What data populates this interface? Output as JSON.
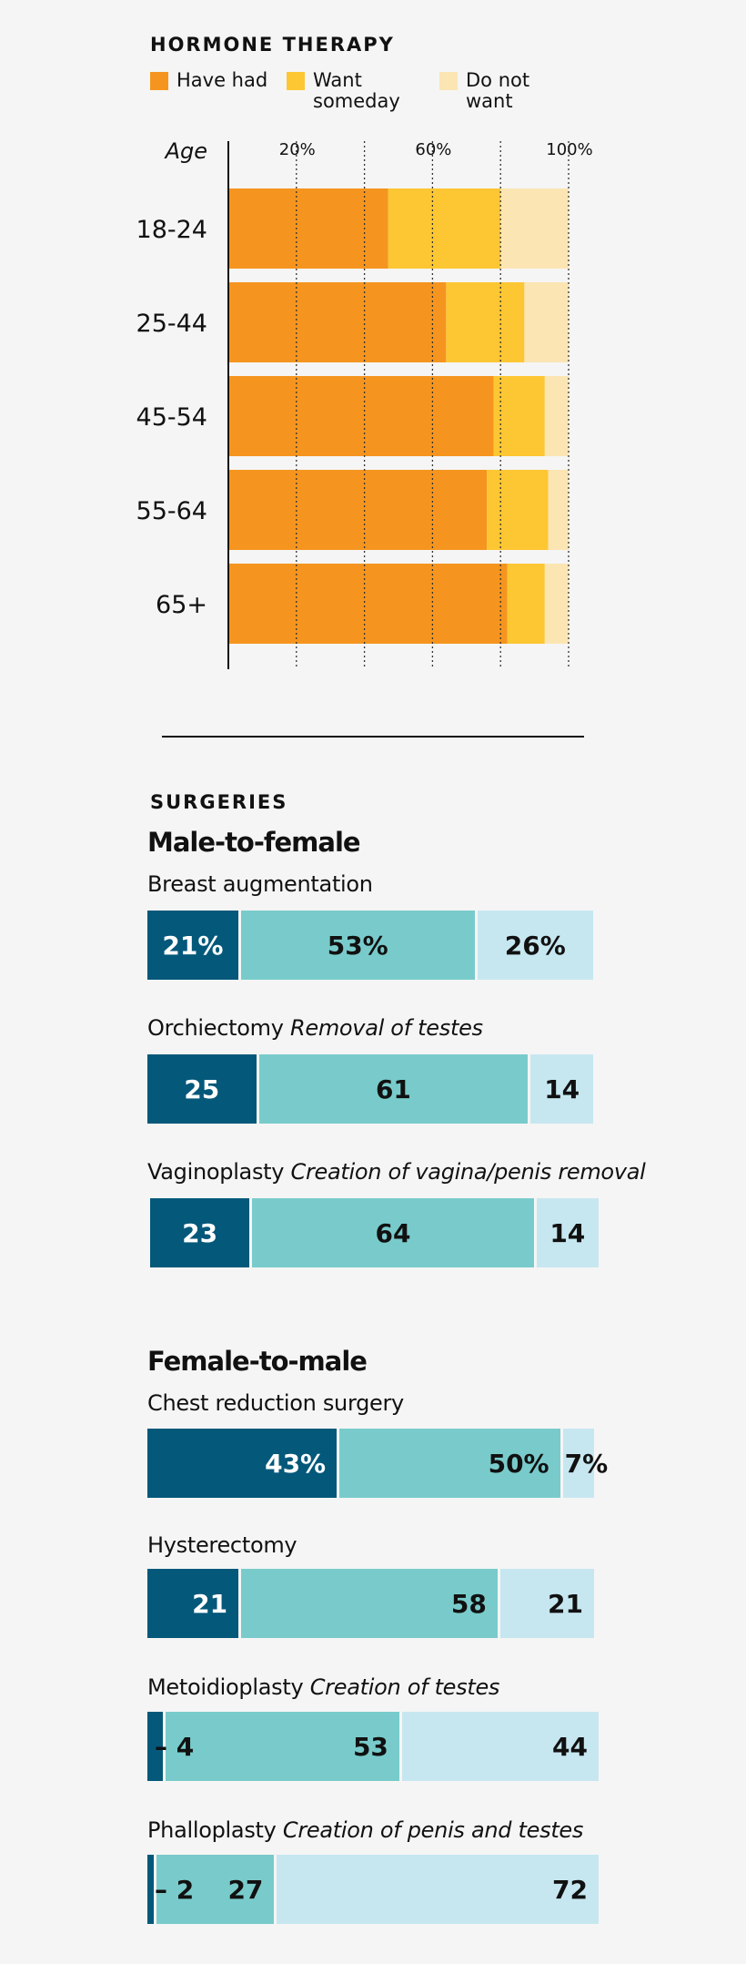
{
  "hormone": {
    "section_title": "HORMONE THERAPY",
    "legend": [
      {
        "label": "Have had",
        "color": "#f5951f"
      },
      {
        "label": "Want\nsomeday",
        "color": "#fdc633"
      },
      {
        "label": "Do not\nwant",
        "color": "#fbe5b3"
      }
    ]
  },
  "chart_data": [
    {
      "type": "bar",
      "orientation": "horizontal",
      "stacked": true,
      "title": "HORMONE THERAPY",
      "ylabel": "Age",
      "categories": [
        "18-24",
        "25-44",
        "45-54",
        "55-64",
        "65+"
      ],
      "series": [
        {
          "name": "Have had",
          "color": "#f5951f",
          "values": [
            47,
            64,
            78,
            76,
            82
          ]
        },
        {
          "name": "Want someday",
          "color": "#fdc633",
          "values": [
            33,
            23,
            15,
            18,
            11
          ]
        },
        {
          "name": "Do not want",
          "color": "#fbe5b3",
          "values": [
            20,
            13,
            7,
            6,
            7
          ]
        }
      ],
      "xlim": [
        0,
        100
      ],
      "xticks": [
        20,
        40,
        60,
        80,
        100
      ],
      "xtick_labels": [
        "20%",
        "",
        "60%",
        "",
        "100%"
      ],
      "grid": true
    },
    {
      "type": "bar",
      "orientation": "horizontal",
      "stacked": true,
      "title": "SURGERIES",
      "groups": [
        {
          "name": "Male-to-female",
          "items": [
            {
              "name": "Breast augmentation",
              "detail": "",
              "values": [
                21,
                53,
                26
              ],
              "labels": [
                "21%",
                "53%",
                "26%"
              ]
            },
            {
              "name": "Orchiectomy",
              "detail": "Removal of testes",
              "values": [
                25,
                61,
                14
              ],
              "labels": [
                "25",
                "61",
                "14"
              ]
            },
            {
              "name": "Vaginoplasty",
              "detail": "Creation of vagina/penis removal",
              "values": [
                23,
                64,
                14
              ],
              "labels": [
                "23",
                "64",
                "14"
              ]
            }
          ]
        },
        {
          "name": "Female-to-male",
          "items": [
            {
              "name": "Chest reduction surgery",
              "detail": "",
              "values": [
                43,
                50,
                7
              ],
              "labels": [
                "43%",
                "50%",
                "7%"
              ]
            },
            {
              "name": "Hysterectomy",
              "detail": "",
              "values": [
                21,
                58,
                21
              ],
              "labels": [
                "21",
                "58",
                "21"
              ]
            },
            {
              "name": "Metoidioplasty",
              "detail": "Creation of testes",
              "values": [
                4,
                53,
                44
              ],
              "labels": [
                "4",
                "53",
                "44"
              ]
            },
            {
              "name": "Phalloplasty",
              "detail": "Creation of penis and testes",
              "values": [
                2,
                27,
                72
              ],
              "labels": [
                "2",
                "27",
                "72"
              ]
            }
          ]
        }
      ],
      "colors": [
        "#04587a",
        "#79cbcb",
        "#c7e7f0"
      ]
    }
  ],
  "surgeries": {
    "section_title": "SURGERIES"
  }
}
